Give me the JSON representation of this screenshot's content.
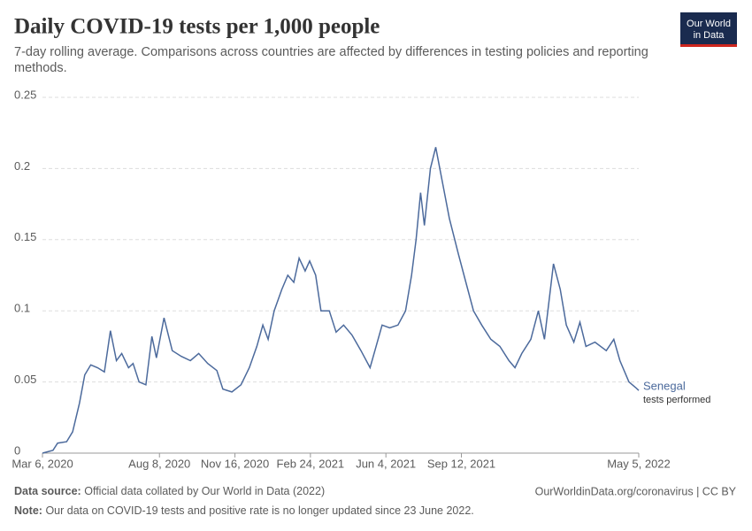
{
  "chart_data": {
    "type": "line",
    "title": "Daily COVID-19 tests per 1,000 people",
    "subtitle": "7-day rolling average. Comparisons across countries are affected by differences in testing policies and reporting methods.",
    "logo": [
      "Our World",
      "in Data"
    ],
    "x": [
      "2020-03-06",
      "2020-03-20",
      "2020-03-26",
      "2020-04-07",
      "2020-04-15",
      "2020-04-24",
      "2020-05-01",
      "2020-05-09",
      "2020-05-18",
      "2020-05-27",
      "2020-06-04",
      "2020-06-12",
      "2020-06-19",
      "2020-06-28",
      "2020-07-04",
      "2020-07-12",
      "2020-07-21",
      "2020-07-29",
      "2020-08-04",
      "2020-08-14",
      "2020-08-25",
      "2020-09-06",
      "2020-09-18",
      "2020-09-29",
      "2020-10-11",
      "2020-10-23",
      "2020-10-31",
      "2020-11-12",
      "2020-11-24",
      "2020-12-05",
      "2020-12-15",
      "2020-12-23",
      "2020-12-30",
      "2021-01-07",
      "2021-01-17",
      "2021-01-25",
      "2021-02-02",
      "2021-02-09",
      "2021-02-17",
      "2021-02-23",
      "2021-03-03",
      "2021-03-10",
      "2021-03-21",
      "2021-03-30",
      "2021-04-09",
      "2021-04-20",
      "2021-05-02",
      "2021-05-14",
      "2021-05-22",
      "2021-05-30",
      "2021-06-09",
      "2021-06-20",
      "2021-06-30",
      "2021-07-08",
      "2021-07-14",
      "2021-07-20",
      "2021-07-25",
      "2021-08-02",
      "2021-08-09",
      "2021-08-18",
      "2021-08-27",
      "2021-09-08",
      "2021-09-18",
      "2021-09-28",
      "2021-10-09",
      "2021-10-21",
      "2021-11-02",
      "2021-11-14",
      "2021-11-22",
      "2021-12-01",
      "2021-12-13",
      "2021-12-23",
      "2021-12-31",
      "2022-01-12",
      "2022-01-21",
      "2022-01-29",
      "2022-02-08",
      "2022-02-16",
      "2022-02-24",
      "2022-03-08",
      "2022-03-23",
      "2022-04-02",
      "2022-04-10",
      "2022-04-22",
      "2022-05-01",
      "2022-05-05"
    ],
    "series": [
      {
        "name": "Senegal",
        "color": "#4c6a9c",
        "annotation": "tests performed",
        "values": [
          0,
          0.002,
          0.007,
          0.008,
          0.015,
          0.035,
          0.055,
          0.062,
          0.06,
          0.057,
          0.086,
          0.065,
          0.07,
          0.06,
          0.063,
          0.05,
          0.048,
          0.082,
          0.067,
          0.095,
          0.072,
          0.068,
          0.065,
          0.07,
          0.063,
          0.058,
          0.045,
          0.043,
          0.048,
          0.06,
          0.075,
          0.09,
          0.08,
          0.1,
          0.115,
          0.125,
          0.12,
          0.137,
          0.128,
          0.135,
          0.125,
          0.1,
          0.1,
          0.085,
          0.09,
          0.083,
          0.072,
          0.06,
          0.075,
          0.09,
          0.088,
          0.09,
          0.1,
          0.125,
          0.15,
          0.183,
          0.16,
          0.2,
          0.215,
          0.19,
          0.165,
          0.14,
          0.12,
          0.1,
          0.09,
          0.08,
          0.075,
          0.065,
          0.06,
          0.07,
          0.08,
          0.1,
          0.08,
          0.133,
          0.115,
          0.09,
          0.078,
          0.092,
          0.075,
          0.078,
          0.072,
          0.08,
          0.065,
          0.05,
          0.046,
          0.044
        ]
      }
    ],
    "xlim": [
      "2020-03-06",
      "2022-05-05"
    ],
    "xticks": [
      {
        "value": "2020-03-06",
        "label": "Mar 6, 2020"
      },
      {
        "value": "2020-08-08",
        "label": "Aug 8, 2020"
      },
      {
        "value": "2020-11-16",
        "label": "Nov 16, 2020"
      },
      {
        "value": "2021-02-24",
        "label": "Feb 24, 2021"
      },
      {
        "value": "2021-06-04",
        "label": "Jun 4, 2021"
      },
      {
        "value": "2021-09-12",
        "label": "Sep 12, 2021"
      },
      {
        "value": "2022-05-05",
        "label": "May 5, 2022"
      }
    ],
    "ylim": [
      0,
      0.25
    ],
    "yticks": [
      0,
      0.05,
      0.1,
      0.15,
      0.2,
      0.25
    ],
    "grid": true,
    "source_label": "Data source:",
    "source": "Official data collated by Our World in Data (2022)",
    "credit": "OurWorldinData.org/coronavirus | CC BY",
    "note_label": "Note:",
    "note": "Our data on COVID-19 tests and positive rate is no longer updated since 23 June 2022."
  }
}
